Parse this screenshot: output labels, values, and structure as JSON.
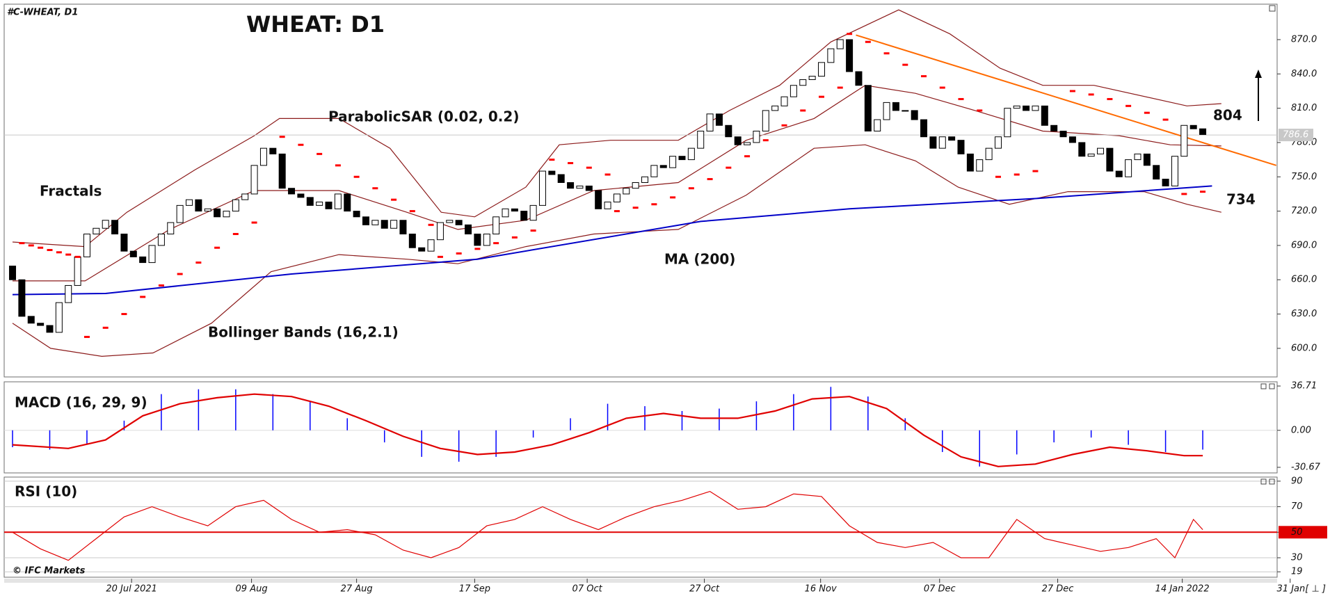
{
  "chart_data": [
    {
      "type": "candlestick",
      "title": "WHEAT: D1",
      "symbol": "#C-WHEAT, D1",
      "up_color": "#ffffff",
      "down_color": "#000000",
      "open": [
        672,
        660,
        628,
        622,
        620,
        614,
        640,
        655,
        680,
        700,
        705,
        712,
        700,
        685,
        680,
        675,
        690,
        700,
        710,
        725,
        730,
        720,
        722,
        715,
        720,
        730,
        735,
        760,
        775,
        770,
        740,
        735,
        732,
        725,
        728,
        722,
        735,
        720,
        715,
        708,
        712,
        705,
        712,
        700,
        688,
        685,
        695,
        710,
        712,
        708,
        700,
        690,
        700,
        715,
        722,
        720,
        712,
        725,
        755,
        752,
        745,
        740,
        742,
        738,
        722,
        728,
        735,
        740,
        745,
        750,
        760,
        758,
        768,
        765,
        775,
        790,
        805,
        795,
        785,
        778,
        780,
        790,
        808,
        812,
        820,
        830,
        835,
        838,
        850,
        862,
        870,
        842,
        830,
        790,
        800,
        815,
        808,
        808,
        800,
        785,
        775,
        785,
        782,
        770,
        755,
        765,
        775,
        785,
        810,
        812,
        808,
        812,
        795,
        790,
        785,
        780,
        768,
        770,
        775,
        755,
        750,
        765,
        770,
        760,
        748,
        742,
        768,
        795,
        792
      ],
      "close": [
        660,
        628,
        622,
        620,
        614,
        640,
        655,
        680,
        700,
        705,
        712,
        700,
        685,
        680,
        675,
        690,
        700,
        710,
        725,
        730,
        720,
        722,
        715,
        720,
        730,
        735,
        760,
        775,
        770,
        740,
        735,
        732,
        725,
        728,
        722,
        735,
        720,
        715,
        708,
        712,
        705,
        712,
        700,
        688,
        685,
        695,
        710,
        712,
        708,
        700,
        690,
        700,
        715,
        722,
        720,
        712,
        725,
        755,
        752,
        745,
        740,
        742,
        738,
        722,
        728,
        735,
        740,
        745,
        750,
        760,
        758,
        768,
        765,
        775,
        790,
        805,
        795,
        785,
        778,
        780,
        790,
        808,
        812,
        820,
        830,
        835,
        838,
        850,
        862,
        870,
        842,
        830,
        790,
        800,
        815,
        808,
        808,
        800,
        785,
        775,
        785,
        782,
        770,
        755,
        765,
        775,
        785,
        810,
        812,
        808,
        812,
        795,
        790,
        785,
        780,
        768,
        770,
        775,
        755,
        750,
        765,
        770,
        760,
        748,
        742,
        768,
        795,
        792,
        787
      ],
      "xlim": [
        -0.9,
        136
      ],
      "ylim": [
        575,
        901
      ],
      "yticks": [
        {
          "value": 600,
          "label": "600.0"
        },
        {
          "value": 630,
          "label": "630.0"
        },
        {
          "value": 660,
          "label": "660.0"
        },
        {
          "value": 690,
          "label": "690.0"
        },
        {
          "value": 720,
          "label": "720.0"
        },
        {
          "value": 750,
          "label": "750.0"
        },
        {
          "value": 780,
          "label": "780.0"
        },
        {
          "value": 810,
          "label": "810.0"
        },
        {
          "value": 840,
          "label": "840.0"
        },
        {
          "value": 870,
          "label": "870.0"
        }
      ],
      "xticks": [
        {
          "value": 12.8,
          "label": "20 Jul 2021"
        },
        {
          "value": 25.7,
          "label": "09 Aug"
        },
        {
          "value": 37,
          "label": "27 Aug"
        },
        {
          "value": 49.7,
          "label": "17 Sep"
        },
        {
          "value": 61.8,
          "label": "07 Oct"
        },
        {
          "value": 74.4,
          "label": "27 Oct"
        },
        {
          "value": 86.9,
          "label": "16 Nov"
        },
        {
          "value": 99.7,
          "label": "07 Dec"
        },
        {
          "value": 112.4,
          "label": "27 Dec"
        },
        {
          "value": 125.8,
          "label": "14 Jan 2022"
        },
        {
          "value": 137.4,
          "label": "31 Jan[ ⊥ ]"
        }
      ],
      "last_price": 786.6,
      "resistance": 804,
      "support": 734,
      "fractals_label": "Fractals",
      "copyright": "© IFC Markets",
      "ma": {
        "name": "MA (200)",
        "color": "#0000c8",
        "x": [
          0,
          10,
          30,
          50,
          74,
          90,
          110,
          129
        ],
        "values": [
          647,
          648,
          665,
          678,
          711,
          722,
          731,
          742
        ]
      },
      "bollinger": {
        "name": "Bollinger Bands (16,2.1)",
        "color": "#8b1a1a",
        "bands": [
          {
            "x": [
              0,
              7.8,
              12.3,
              19.6,
              26,
              28.7,
              35.1,
              40.6,
              46.1,
              49.7,
              55.2,
              58.8,
              64.3,
              71.6,
              77.1,
              82.5,
              88,
              95.3,
              100.8,
              106.2,
              110.8,
              116.3,
              126.3,
              130
            ],
            "values": [
              693,
              689,
              719,
              756,
              786,
              801,
              801,
              775,
              719,
              715,
              741,
              778,
              782,
              782,
              808,
              830,
              868,
              896,
              875,
              845,
              830,
              830,
              812,
              814
            ]
          },
          {
            "x": [
              0,
              7.8,
              16.9,
              26,
              35.1,
              42.4,
              47.9,
              55.2,
              62.5,
              71.6,
              78.9,
              86.2,
              91.7,
              97.1,
              103.5,
              110.8,
              119,
              124.5,
              130
            ],
            "values": [
              659,
              659,
              704,
              738,
              738,
              719,
              704,
              712,
              738,
              745,
              782,
              801,
              830,
              823,
              808,
              790,
              786,
              778,
              777
            ]
          },
          {
            "x": [
              0,
              4.1,
              9.6,
              15.1,
              21.4,
              27.8,
              35.1,
              42.4,
              47.9,
              55.2,
              62.5,
              71.6,
              78.9,
              86.2,
              91.7,
              97.1,
              101.7,
              107.2,
              113.5,
              121.7,
              126.3,
              130
            ],
            "values": [
              622,
              600,
              593,
              596,
              622,
              667,
              682,
              678,
              674,
              689,
              700,
              704,
              734,
              775,
              778,
              764,
              741,
              726,
              737,
              737,
              726,
              719
            ]
          }
        ]
      },
      "sar": {
        "name": "ParabolicSAR (0.02, 0.2)",
        "color": "#ff0000",
        "x": [
          1,
          2,
          3,
          4,
          5,
          6,
          7,
          8,
          10,
          12,
          14,
          16,
          18,
          20,
          22,
          24,
          26,
          29,
          31,
          33,
          35,
          37,
          39,
          41,
          43,
          45,
          46,
          48,
          50,
          52,
          54,
          56,
          58,
          60,
          62,
          64,
          65,
          67,
          69,
          71,
          73,
          75,
          77,
          79,
          81,
          83,
          85,
          87,
          89,
          90,
          92,
          94,
          96,
          98,
          100,
          102,
          104,
          106,
          108,
          110,
          114,
          116,
          118,
          120,
          122,
          124,
          126,
          128
        ],
        "values": [
          692,
          690,
          688,
          686,
          684,
          682,
          680,
          610,
          618,
          630,
          645,
          655,
          665,
          675,
          688,
          700,
          710,
          785,
          778,
          770,
          760,
          750,
          740,
          730,
          720,
          708,
          680,
          683,
          687,
          692,
          697,
          703,
          765,
          762,
          758,
          752,
          720,
          723,
          726,
          732,
          740,
          748,
          758,
          768,
          782,
          795,
          808,
          820,
          828,
          875,
          868,
          858,
          848,
          838,
          828,
          818,
          808,
          750,
          752,
          755,
          825,
          822,
          818,
          812,
          806,
          800,
          735,
          737
        ]
      },
      "trendline": {
        "color": "#ff6a00",
        "x": [
          90.7,
          135.9
        ],
        "values": [
          874,
          760
        ]
      }
    },
    {
      "type": "bar",
      "title": "MACD (16, 29, 9)",
      "ylim": [
        -35.3,
        40.2
      ],
      "yticks": [
        36.71,
        {
          "value": 0,
          "label": "0.00"
        },
        -30.67
      ],
      "histogram": {
        "color": "#0000ff",
        "x": [
          0,
          4,
          8,
          12,
          16,
          20,
          24,
          28,
          32,
          36,
          40,
          44,
          48,
          52,
          56,
          60,
          64,
          68,
          72,
          76,
          80,
          84,
          88,
          92,
          96,
          100,
          104,
          108,
          112,
          116,
          120,
          124,
          128
        ],
        "values": [
          -14,
          -16,
          -12,
          8,
          30,
          34,
          34,
          30,
          24,
          10,
          -10,
          -22,
          -26,
          -22,
          -6,
          10,
          22,
          20,
          16,
          18,
          24,
          30,
          36,
          28,
          10,
          -18,
          -30,
          -20,
          -10,
          -6,
          -12,
          -18,
          -16
        ]
      },
      "signal": {
        "color": "#e00000",
        "x": [
          0,
          6,
          10,
          14,
          18,
          22,
          26,
          30,
          34,
          38,
          42,
          46,
          50,
          54,
          58,
          62,
          66,
          70,
          74,
          78,
          82,
          86,
          90,
          94,
          98,
          102,
          106,
          110,
          114,
          118,
          122,
          126,
          128
        ],
        "values": [
          -12,
          -15,
          -8,
          12,
          22,
          27,
          30,
          28,
          20,
          8,
          -5,
          -15,
          -20,
          -18,
          -12,
          -2,
          10,
          14,
          10,
          10,
          16,
          26,
          28,
          18,
          -4,
          -22,
          -30,
          -28,
          -20,
          -14,
          -17,
          -21,
          -21
        ]
      }
    },
    {
      "type": "line",
      "title": "RSI (10)",
      "ylim": [
        14.75,
        93.2
      ],
      "yticks": [
        90,
        70,
        50,
        30,
        19
      ],
      "grid": true,
      "level": {
        "value": 50,
        "color": "#e00000"
      },
      "series": [
        {
          "color": "#e00000",
          "x": [
            0,
            3,
            6,
            9,
            12,
            15,
            18,
            21,
            24,
            27,
            30,
            33,
            36,
            39,
            42,
            45,
            48,
            51,
            54,
            57,
            60,
            63,
            66,
            69,
            72,
            75,
            78,
            81,
            84,
            87,
            90,
            93,
            96,
            99,
            102,
            105,
            108,
            111,
            114,
            117,
            120,
            123,
            125,
            127,
            128
          ],
          "values": [
            50,
            37,
            28,
            45,
            62,
            70,
            62,
            55,
            70,
            75,
            60,
            50,
            52,
            48,
            36,
            30,
            38,
            55,
            60,
            70,
            60,
            52,
            62,
            70,
            75,
            82,
            68,
            70,
            80,
            78,
            55,
            42,
            38,
            42,
            30,
            30,
            60,
            45,
            40,
            35,
            38,
            45,
            30,
            60,
            52
          ]
        }
      ]
    }
  ]
}
